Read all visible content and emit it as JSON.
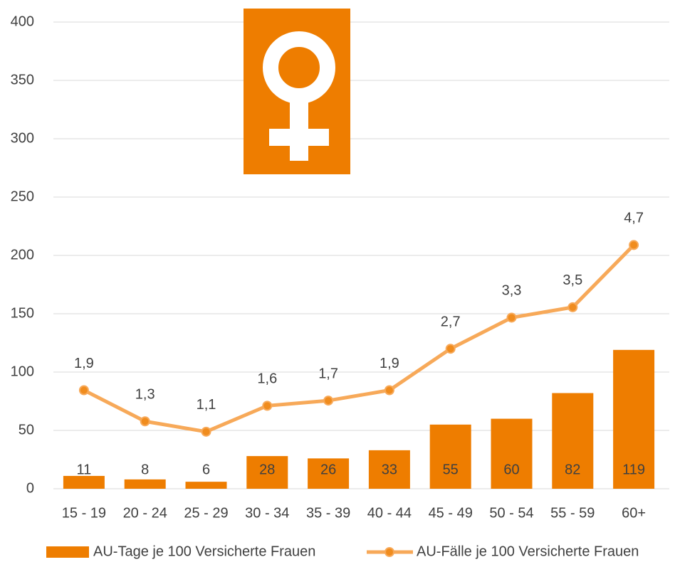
{
  "chart_data": {
    "type": "bar",
    "categories": [
      "15 - 19",
      "20 - 24",
      "25 - 29",
      "30 - 34",
      "35 - 39",
      "40 - 44",
      "45 - 49",
      "50 - 54",
      "55 - 59",
      "60+"
    ],
    "series": [
      {
        "name": "AU-Tage je 100 Versicherte Frauen",
        "type": "bar",
        "color": "#ee7d00",
        "values": [
          11,
          8,
          6,
          28,
          26,
          33,
          55,
          60,
          82,
          119
        ]
      },
      {
        "name": "AU-Fälle je 100 Versicherte Frauen",
        "type": "line",
        "axis": "y2",
        "color": "#f7a959",
        "marker_color": "#f08c1e",
        "values": [
          1.9,
          1.3,
          1.1,
          1.6,
          1.7,
          1.9,
          2.7,
          3.3,
          3.5,
          4.7
        ],
        "value_labels": [
          "1,9",
          "1,3",
          "1,1",
          "1,6",
          "1,7",
          "1,9",
          "2,7",
          "3,3",
          "3,5",
          "4,7"
        ]
      }
    ],
    "ylim": [
      0,
      400
    ],
    "yticks": [
      0,
      50,
      100,
      150,
      200,
      250,
      300,
      350,
      400
    ],
    "y2lim": [
      0,
      9
    ],
    "grid": true,
    "legend": "bottom"
  }
}
